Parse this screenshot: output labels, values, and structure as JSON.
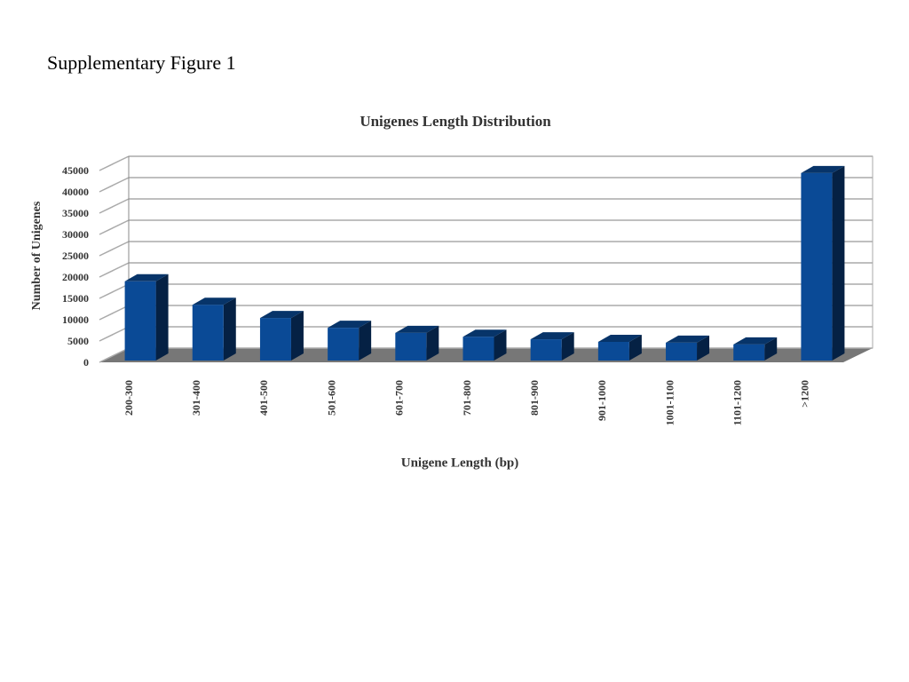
{
  "caption": "Supplementary Figure  1",
  "chart_data": {
    "type": "bar3d",
    "title": "Unigenes Length Distribution",
    "x_label": "Unigene Length (bp)",
    "y_label": "Number of Unigenes",
    "categories": [
      "200-300",
      "301-400",
      "401-500",
      "501-600",
      "601-700",
      "701-800",
      "801-900",
      "901-1000",
      "1001-1100",
      "1101-1200",
      ">1200"
    ],
    "values": [
      19000,
      13500,
      10400,
      8100,
      6900,
      6000,
      5400,
      4800,
      4600,
      4200,
      44400
    ],
    "color": "#0a4a96",
    "ylim": [
      0,
      45000
    ],
    "yticks": [
      0,
      5000,
      10000,
      15000,
      20000,
      25000,
      30000,
      35000,
      40000,
      45000
    ],
    "grid": true
  }
}
